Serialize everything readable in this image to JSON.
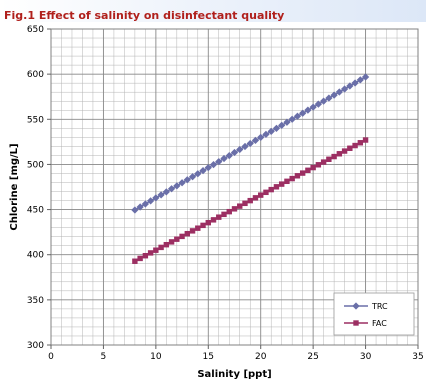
{
  "chart_title": "Fig.1 Effect of salinity on disinfectant quality",
  "chart_data": {
    "type": "line",
    "title": "Fig.1 Effect of salinity on disinfectant quality",
    "xlabel": "Salinity [ppt]",
    "ylabel": "Chlorine [mg/L]",
    "xlim": [
      0,
      35
    ],
    "ylim": [
      300,
      650
    ],
    "x_ticks": [
      0,
      5,
      10,
      15,
      20,
      25,
      30,
      35
    ],
    "y_ticks": [
      300,
      350,
      400,
      450,
      500,
      550,
      600,
      650
    ],
    "x_minor_step": 1,
    "y_minor_step": 10,
    "grid": true,
    "legend_position": "bottom-right",
    "x": [
      8,
      8.5,
      9,
      9.5,
      10,
      10.5,
      11,
      11.5,
      12,
      12.5,
      13,
      13.5,
      14,
      14.5,
      15,
      15.5,
      16,
      16.5,
      17,
      17.5,
      18,
      18.5,
      19,
      19.5,
      20,
      20.5,
      21,
      21.5,
      22,
      22.5,
      23,
      23.5,
      24,
      24.5,
      25,
      25.5,
      26,
      26.5,
      27,
      27.5,
      28,
      28.5,
      29,
      29.5,
      30
    ],
    "series": [
      {
        "name": "TRC",
        "color": "#6a6fa8",
        "marker": "diamond",
        "values": [
          449.5,
          452.9,
          456.2,
          459.6,
          462.9,
          466.3,
          469.6,
          473.0,
          476.3,
          479.7,
          483.0,
          486.4,
          489.7,
          493.1,
          496.4,
          499.8,
          503.1,
          506.5,
          509.8,
          513.2,
          516.5,
          519.9,
          523.2,
          526.6,
          529.9,
          533.3,
          536.6,
          540.0,
          543.3,
          546.7,
          550.0,
          553.4,
          556.7,
          560.1,
          563.4,
          566.8,
          570.1,
          573.5,
          576.8,
          580.2,
          583.5,
          586.9,
          590.2,
          593.6,
          596.9
        ]
      },
      {
        "name": "FAC",
        "color": "#9c2f62",
        "marker": "square",
        "values": [
          392.8,
          395.9,
          398.9,
          402.0,
          405.0,
          408.1,
          411.1,
          414.2,
          417.2,
          420.3,
          423.3,
          426.4,
          429.4,
          432.5,
          435.5,
          438.6,
          441.6,
          444.7,
          447.7,
          450.8,
          453.8,
          456.9,
          459.9,
          463.0,
          466.0,
          469.1,
          472.1,
          475.2,
          478.2,
          481.3,
          484.3,
          487.4,
          490.4,
          493.5,
          496.5,
          499.6,
          502.6,
          505.7,
          508.7,
          511.8,
          514.8,
          517.9,
          520.9,
          524.0,
          527.0
        ]
      }
    ]
  }
}
